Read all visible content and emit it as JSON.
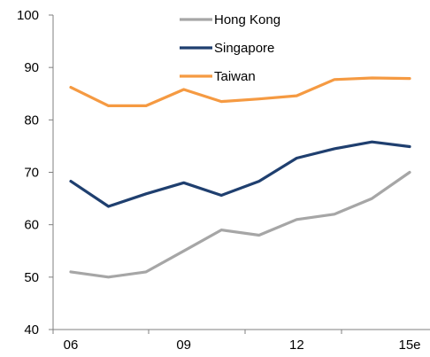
{
  "chart_data": {
    "type": "line",
    "x": [
      "06",
      "07",
      "08",
      "09",
      "10",
      "11",
      "12",
      "13",
      "14",
      "15e"
    ],
    "x_tick_labels": [
      "06",
      "09",
      "12",
      "15e"
    ],
    "ylim": [
      40,
      100
    ],
    "y_ticks": [
      40,
      50,
      60,
      70,
      80,
      90,
      100
    ],
    "grid": false,
    "legend_position": "top-center",
    "series": [
      {
        "name": "Hong Kong",
        "color": "#a6a6a6",
        "values": [
          51,
          50,
          51,
          55,
          59,
          58,
          61,
          62,
          65,
          70
        ]
      },
      {
        "name": "Singapore",
        "color": "#1f3f6f",
        "values": [
          68.3,
          63.5,
          65.9,
          68,
          65.6,
          68.3,
          72.7,
          74.5,
          75.8,
          74.9
        ]
      },
      {
        "name": "Taiwan",
        "color": "#f59a42",
        "values": [
          86.2,
          82.7,
          82.7,
          85.8,
          83.5,
          84,
          84.6,
          87.7,
          88,
          87.9
        ]
      }
    ]
  }
}
